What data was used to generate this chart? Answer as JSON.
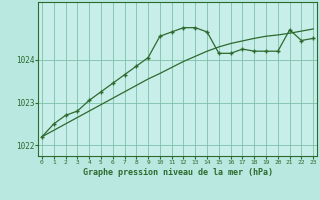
{
  "title": "",
  "xlabel": "Graphe pression niveau de la mer (hPa)",
  "ylabel": "",
  "background_color": "#b8e8e0",
  "plot_bg_color": "#c8eeea",
  "line_color": "#2d6a2d",
  "grid_color": "#7fbfaa",
  "x_values": [
    0,
    1,
    2,
    3,
    4,
    5,
    6,
    7,
    8,
    9,
    10,
    11,
    12,
    13,
    14,
    15,
    16,
    17,
    18,
    19,
    20,
    21,
    22,
    23
  ],
  "y_main": [
    1022.2,
    1022.5,
    1022.7,
    1022.8,
    1023.05,
    1023.25,
    1023.45,
    1023.65,
    1023.85,
    1024.05,
    1024.55,
    1024.65,
    1024.75,
    1024.75,
    1024.65,
    1024.15,
    1024.15,
    1024.25,
    1024.2,
    1024.2,
    1024.2,
    1024.7,
    1024.45,
    1024.5
  ],
  "y_trend": [
    1022.2,
    1022.35,
    1022.5,
    1022.65,
    1022.8,
    1022.95,
    1023.1,
    1023.25,
    1023.4,
    1023.55,
    1023.68,
    1023.82,
    1023.96,
    1024.08,
    1024.2,
    1024.3,
    1024.38,
    1024.44,
    1024.5,
    1024.55,
    1024.58,
    1024.62,
    1024.67,
    1024.72
  ],
  "ylim": [
    1021.75,
    1025.35
  ],
  "yticks": [
    1022,
    1023,
    1024
  ],
  "xlim": [
    -0.3,
    23.3
  ]
}
